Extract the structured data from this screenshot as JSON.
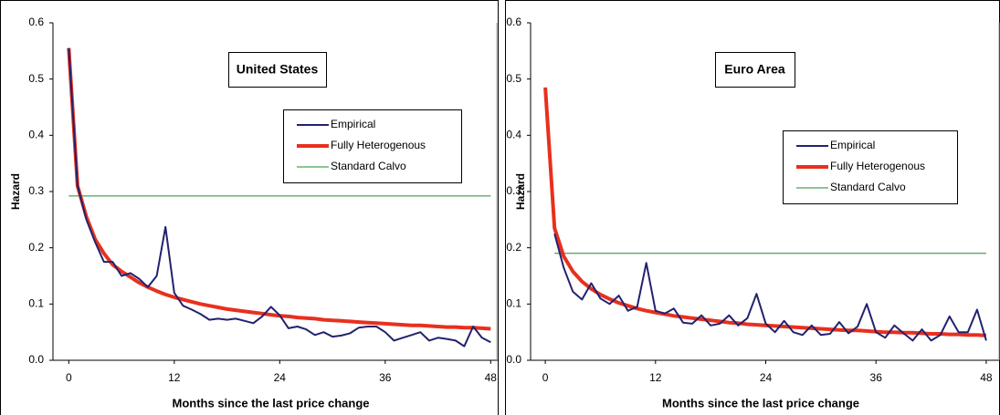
{
  "chart_data": [
    {
      "type": "line",
      "title": "United States",
      "xlabel": "Months since the last price change",
      "ylabel": "Hazard",
      "x": [
        0,
        1,
        2,
        3,
        4,
        5,
        6,
        7,
        8,
        9,
        10,
        11,
        12,
        13,
        14,
        15,
        16,
        17,
        18,
        19,
        20,
        21,
        22,
        23,
        24,
        25,
        26,
        27,
        28,
        29,
        30,
        31,
        32,
        33,
        34,
        35,
        36,
        37,
        38,
        39,
        40,
        41,
        42,
        43,
        44,
        45,
        46,
        47,
        48
      ],
      "xlim": [
        -1.8,
        48.8
      ],
      "xticks": [
        0,
        12,
        24,
        36,
        48
      ],
      "ylim": [
        0,
        0.6
      ],
      "yticks": [
        {
          "value": 0,
          "label": "0.0"
        },
        0.1,
        0.2,
        0.3,
        0.4,
        0.5,
        0.6
      ],
      "series": [
        {
          "name": "Empirical",
          "color": "#22226e",
          "values": [
            0.555,
            0.31,
            0.25,
            0.21,
            0.175,
            0.175,
            0.15,
            0.155,
            0.145,
            0.13,
            0.15,
            0.237,
            0.12,
            0.097,
            0.09,
            0.082,
            0.072,
            0.074,
            0.072,
            0.074,
            0.07,
            0.066,
            0.078,
            0.095,
            0.08,
            0.057,
            0.06,
            0.055,
            0.045,
            0.05,
            0.042,
            0.044,
            0.048,
            0.058,
            0.06,
            0.06,
            0.05,
            0.035,
            0.04,
            0.045,
            0.05,
            0.035,
            0.04,
            0.038,
            0.035,
            0.025,
            0.06,
            0.04,
            0.032
          ]
        },
        {
          "name": "Fully Heterogenous",
          "color": "#e8301e",
          "values": [
            0.555,
            0.31,
            0.255,
            0.215,
            0.19,
            0.17,
            0.158,
            0.148,
            0.138,
            0.13,
            0.123,
            0.117,
            0.112,
            0.108,
            0.104,
            0.1,
            0.097,
            0.094,
            0.091,
            0.089,
            0.087,
            0.085,
            0.083,
            0.081,
            0.079,
            0.078,
            0.076,
            0.075,
            0.074,
            0.072,
            0.071,
            0.07,
            0.069,
            0.068,
            0.067,
            0.066,
            0.065,
            0.064,
            0.063,
            0.062,
            0.062,
            0.061,
            0.06,
            0.059,
            0.059,
            0.058,
            0.058,
            0.057,
            0.056
          ]
        },
        {
          "name": "Standard Calvo",
          "color": "#1e8a2e",
          "values": [
            0.292,
            0.292,
            0.292,
            0.292,
            0.292,
            0.292,
            0.292,
            0.292,
            0.292,
            0.292,
            0.292,
            0.292,
            0.292,
            0.292,
            0.292,
            0.292,
            0.292,
            0.292,
            0.292,
            0.292,
            0.292,
            0.292,
            0.292,
            0.292,
            0.292,
            0.292,
            0.292,
            0.292,
            0.292,
            0.292,
            0.292,
            0.292,
            0.292,
            0.292,
            0.292,
            0.292,
            0.292,
            0.292,
            0.292,
            0.292,
            0.292,
            0.292,
            0.292,
            0.292,
            0.292,
            0.292,
            0.292,
            0.292,
            0.292
          ]
        }
      ]
    },
    {
      "type": "line",
      "title": "Euro Area",
      "xlabel": "Months since the last price change",
      "ylabel": "Hazard",
      "x": [
        0,
        1,
        2,
        3,
        4,
        5,
        6,
        7,
        8,
        9,
        10,
        11,
        12,
        13,
        14,
        15,
        16,
        17,
        18,
        19,
        20,
        21,
        22,
        23,
        24,
        25,
        26,
        27,
        28,
        29,
        30,
        31,
        32,
        33,
        34,
        35,
        36,
        37,
        38,
        39,
        40,
        41,
        42,
        43,
        44,
        45,
        46,
        47,
        48
      ],
      "xlim": [
        -1.6,
        49.5
      ],
      "xticks": [
        0,
        12,
        24,
        36,
        48
      ],
      "ylim": [
        0,
        0.6
      ],
      "yticks": [
        {
          "value": 0,
          "label": "0.0"
        },
        0.1,
        0.2,
        0.3,
        0.4,
        0.5,
        0.6
      ],
      "series": [
        {
          "name": "Empirical",
          "color": "#22226e",
          "values": [
            null,
            0.225,
            0.165,
            0.122,
            0.108,
            0.137,
            0.11,
            0.1,
            0.115,
            0.088,
            0.095,
            0.173,
            0.088,
            0.083,
            0.092,
            0.067,
            0.065,
            0.08,
            0.062,
            0.065,
            0.08,
            0.062,
            0.075,
            0.118,
            0.065,
            0.05,
            0.07,
            0.05,
            0.045,
            0.062,
            0.045,
            0.047,
            0.068,
            0.048,
            0.06,
            0.1,
            0.05,
            0.04,
            0.062,
            0.048,
            0.035,
            0.055,
            0.035,
            0.045,
            0.078,
            0.05,
            0.05,
            0.09,
            0.035
          ]
        },
        {
          "name": "Fully Heterogenous",
          "color": "#e8301e",
          "values": [
            0.485,
            0.235,
            0.185,
            0.158,
            0.14,
            0.127,
            0.117,
            0.109,
            0.102,
            0.097,
            0.092,
            0.088,
            0.085,
            0.082,
            0.079,
            0.077,
            0.075,
            0.073,
            0.071,
            0.069,
            0.067,
            0.066,
            0.064,
            0.063,
            0.062,
            0.061,
            0.06,
            0.059,
            0.058,
            0.057,
            0.056,
            0.055,
            0.054,
            0.053,
            0.053,
            0.052,
            0.051,
            0.05,
            0.05,
            0.049,
            0.049,
            0.048,
            0.047,
            0.047,
            0.046,
            0.046,
            0.045,
            0.045,
            0.044
          ]
        },
        {
          "name": "Standard Calvo",
          "color": "#1e8a2e",
          "values": [
            null,
            0.19,
            0.19,
            0.19,
            0.19,
            0.19,
            0.19,
            0.19,
            0.19,
            0.19,
            0.19,
            0.19,
            0.19,
            0.19,
            0.19,
            0.19,
            0.19,
            0.19,
            0.19,
            0.19,
            0.19,
            0.19,
            0.19,
            0.19,
            0.19,
            0.19,
            0.19,
            0.19,
            0.19,
            0.19,
            0.19,
            0.19,
            0.19,
            0.19,
            0.19,
            0.19,
            0.19,
            0.19,
            0.19,
            0.19,
            0.19,
            0.19,
            0.19,
            0.19,
            0.19,
            0.19,
            0.19,
            0.19,
            0.19
          ]
        }
      ]
    }
  ]
}
